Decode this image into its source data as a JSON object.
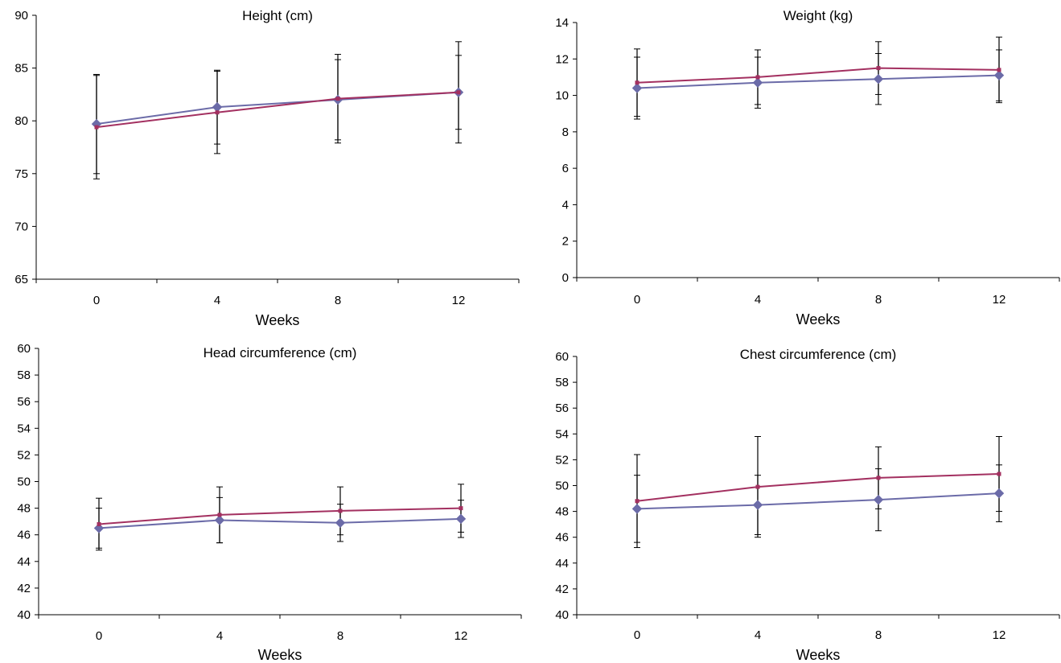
{
  "colors": {
    "series_a": "#6B6BA8",
    "series_b": "#A33060",
    "axis": "#000000",
    "error_bar": "#000000"
  },
  "chart_data": [
    {
      "type": "line",
      "title": "Height (cm)",
      "xlabel": "Weeks",
      "ylabel": "",
      "categories": [
        "0",
        "4",
        "8",
        "12"
      ],
      "ylim": [
        65,
        90
      ],
      "yticks": [
        65,
        70,
        75,
        80,
        85,
        90
      ],
      "grid": false,
      "legend": "none",
      "series": [
        {
          "marker": "diamond",
          "color": "#6B6BA8",
          "values": [
            79.7,
            81.3,
            82.0,
            82.7
          ],
          "error": [
            4.7,
            3.5,
            3.8,
            3.5
          ]
        },
        {
          "marker": "square",
          "color": "#A33060",
          "values": [
            79.4,
            80.8,
            82.1,
            82.7
          ],
          "error": [
            4.9,
            3.9,
            4.2,
            4.8
          ]
        }
      ]
    },
    {
      "type": "line",
      "title": "Weight (kg)",
      "xlabel": "Weeks",
      "ylabel": "",
      "categories": [
        "0",
        "4",
        "8",
        "12"
      ],
      "ylim": [
        0,
        14
      ],
      "yticks": [
        0,
        2,
        4,
        6,
        8,
        10,
        12,
        14
      ],
      "grid": false,
      "legend": "none",
      "series": [
        {
          "marker": "diamond",
          "color": "#6B6BA8",
          "values": [
            10.4,
            10.7,
            10.9,
            11.1
          ],
          "error": [
            1.7,
            1.4,
            1.4,
            1.4
          ]
        },
        {
          "marker": "square",
          "color": "#A33060",
          "values": [
            10.7,
            11.0,
            11.5,
            11.4
          ],
          "error": [
            1.85,
            1.5,
            1.45,
            1.8
          ]
        }
      ]
    },
    {
      "type": "line",
      "title": "Head circumference (cm)",
      "xlabel": "Weeks",
      "ylabel": "",
      "categories": [
        "0",
        "4",
        "8",
        "12"
      ],
      "ylim": [
        40,
        60
      ],
      "yticks": [
        40,
        42,
        44,
        46,
        48,
        50,
        52,
        54,
        56,
        58,
        60
      ],
      "grid": false,
      "legend": "none",
      "series": [
        {
          "marker": "diamond",
          "color": "#6B6BA8",
          "values": [
            46.5,
            47.1,
            46.9,
            47.2
          ],
          "error": [
            1.5,
            1.7,
            1.4,
            1.4
          ]
        },
        {
          "marker": "square",
          "color": "#A33060",
          "values": [
            46.8,
            47.5,
            47.8,
            48.0
          ],
          "error": [
            1.95,
            2.1,
            1.8,
            1.8
          ]
        }
      ]
    },
    {
      "type": "line",
      "title": "Chest circumference (cm)",
      "xlabel": "Weeks",
      "ylabel": "",
      "categories": [
        "0",
        "4",
        "8",
        "12"
      ],
      "ylim": [
        40,
        60
      ],
      "yticks": [
        40,
        42,
        44,
        46,
        48,
        50,
        52,
        54,
        56,
        58,
        60
      ],
      "grid": false,
      "legend": "none",
      "series": [
        {
          "marker": "diamond",
          "color": "#6B6BA8",
          "values": [
            48.2,
            48.5,
            48.9,
            49.4
          ],
          "error": [
            2.6,
            2.3,
            2.4,
            2.2
          ]
        },
        {
          "marker": "square",
          "color": "#A33060",
          "values": [
            48.8,
            49.9,
            50.6,
            50.9
          ],
          "error": [
            3.6,
            3.9,
            2.4,
            2.9
          ]
        }
      ]
    }
  ]
}
